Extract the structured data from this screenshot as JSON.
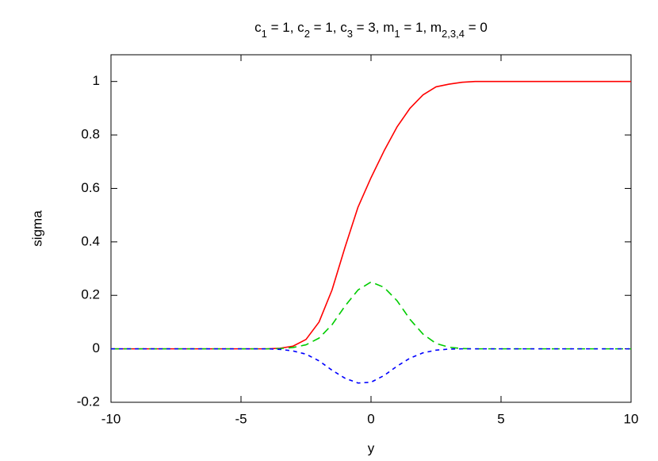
{
  "chart_data": {
    "type": "line",
    "title": [
      "c",
      "1",
      " = 1, c",
      "2",
      " = 1, c",
      "3",
      " = 3, m",
      "1",
      " = 1, m",
      "2,3,4",
      " = 0"
    ],
    "xlabel": "y",
    "ylabel": "sigma",
    "xlim": [
      -10,
      10
    ],
    "ylim": [
      -0.2,
      1.1
    ],
    "xticks": [
      -10,
      -5,
      0,
      5,
      10
    ],
    "yticks": [
      -0.2,
      0,
      0.2,
      0.4,
      0.6,
      0.8,
      1
    ],
    "x": [
      -10,
      -9.5,
      -9,
      -8.5,
      -8,
      -7.5,
      -7,
      -6.5,
      -6,
      -5.5,
      -5,
      -4.5,
      -4,
      -3.5,
      -3,
      -2.5,
      -2,
      -1.5,
      -1,
      -0.5,
      0,
      0.5,
      1,
      1.5,
      2,
      2.5,
      3,
      3.5,
      4,
      4.5,
      5,
      5.5,
      6,
      6.5,
      7,
      7.5,
      8,
      8.5,
      9,
      9.5,
      10
    ],
    "series": [
      {
        "color": "#ff0000",
        "dash": "none",
        "values": [
          0,
          0,
          0,
          0,
          0,
          0,
          0,
          0,
          0,
          0,
          0,
          0,
          0,
          0.002,
          0.01,
          0.035,
          0.1,
          0.22,
          0.38,
          0.53,
          0.64,
          0.74,
          0.83,
          0.9,
          0.95,
          0.98,
          0.99,
          0.997,
          1,
          1,
          1,
          1,
          1,
          1,
          1,
          1,
          1,
          1,
          1,
          1,
          1
        ]
      },
      {
        "color": "#00cc00",
        "dash": "10 6",
        "values": [
          0,
          0,
          0,
          0,
          0,
          0,
          0,
          0,
          0,
          0,
          0,
          0,
          0,
          0.001,
          0.005,
          0.015,
          0.04,
          0.09,
          0.16,
          0.22,
          0.25,
          0.23,
          0.18,
          0.11,
          0.055,
          0.02,
          0.006,
          0.001,
          0,
          0,
          0,
          0,
          0,
          0,
          0,
          0,
          0,
          0,
          0,
          0,
          0
        ]
      },
      {
        "color": "#0000ff",
        "dash": "5 5",
        "values": [
          0,
          0,
          0,
          0,
          0,
          0,
          0,
          0,
          0,
          0,
          0,
          0,
          0,
          -0.002,
          -0.008,
          -0.02,
          -0.045,
          -0.08,
          -0.11,
          -0.128,
          -0.125,
          -0.1,
          -0.065,
          -0.035,
          -0.015,
          -0.005,
          -0.001,
          0,
          0,
          0,
          0,
          0,
          0,
          0,
          0,
          0,
          0,
          0,
          0,
          0,
          0
        ]
      }
    ]
  }
}
